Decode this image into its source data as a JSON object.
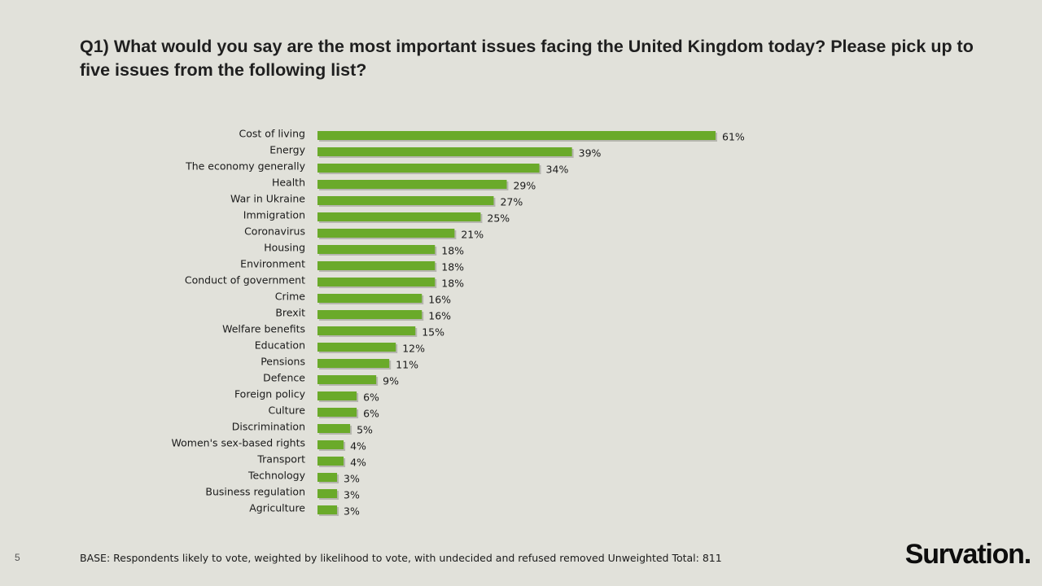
{
  "slide": {
    "title": "Q1) What would you say are the most important issues facing the United Kingdom today? Please pick up to five issues from the following list?",
    "page_number": "5",
    "base_note": "BASE: Respondents likely to vote, weighted by likelihood to vote, with undecided and refused removed Unweighted Total: 811",
    "logo_text": "Survation."
  },
  "chart_data": {
    "type": "bar",
    "orientation": "horizontal",
    "title": "",
    "xlabel": "",
    "ylabel": "",
    "unit": "%",
    "bar_color": "#6aaa2a",
    "xlim": [
      0,
      61
    ],
    "categories": [
      "Cost of living",
      "Energy",
      "The economy generally",
      "Health",
      "War in Ukraine",
      "Immigration",
      "Coronavirus",
      "Housing",
      "Environment",
      "Conduct of government",
      "Crime",
      "Brexit",
      "Welfare benefits",
      "Education",
      "Pensions",
      "Defence",
      "Foreign policy",
      "Culture",
      "Discrimination",
      "Women's sex-based rights",
      "Transport",
      "Technology",
      "Business regulation",
      "Agriculture"
    ],
    "values": [
      61,
      39,
      34,
      29,
      27,
      25,
      21,
      18,
      18,
      18,
      16,
      16,
      15,
      12,
      11,
      9,
      6,
      6,
      5,
      4,
      4,
      3,
      3,
      3
    ],
    "labels": [
      "61%",
      "39%",
      "34%",
      "29%",
      "27%",
      "25%",
      "21%",
      "18%",
      "18%",
      "18%",
      "16%",
      "16%",
      "15%",
      "12%",
      "11%",
      "9%",
      "6%",
      "6%",
      "5%",
      "4%",
      "4%",
      "3%",
      "3%",
      "3%"
    ]
  }
}
